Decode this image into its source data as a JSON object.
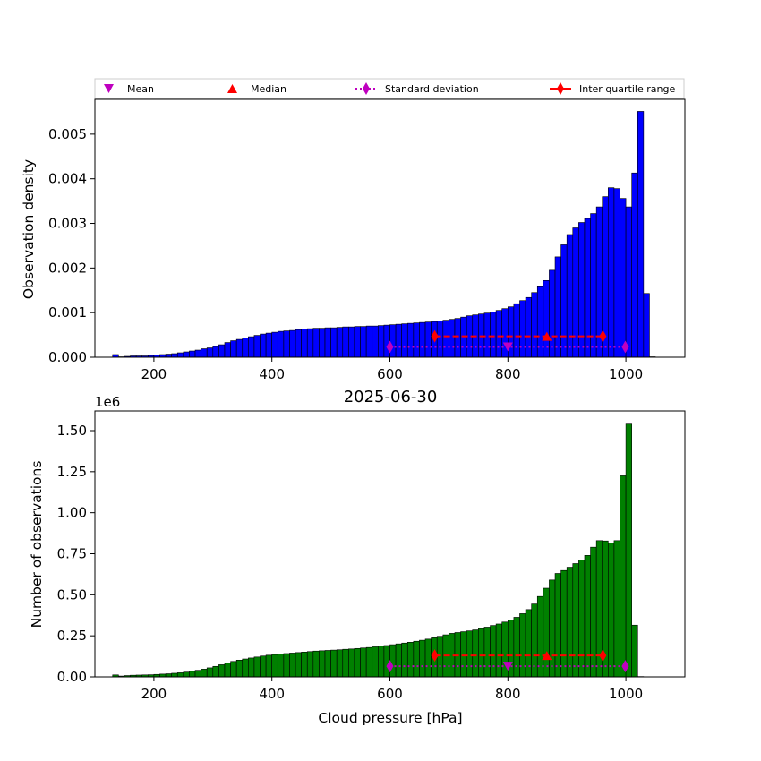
{
  "legend": {
    "mean_label": "Mean",
    "median_label": "Median",
    "std_label": "Standard deviation",
    "iqr_label": "Inter quartile range"
  },
  "colors": {
    "top_bars": "#0000ff",
    "bottom_bars": "#008000",
    "mean": "#bf00bf",
    "std": "#bf00bf",
    "median": "#ff0000",
    "iqr": "#ff0000"
  },
  "chart_data": [
    {
      "type": "bar",
      "xlabel": "",
      "ylabel": "Observation density",
      "xlim": [
        100,
        1100
      ],
      "ylim": [
        0,
        0.00578
      ],
      "xticks": [
        200,
        400,
        600,
        800,
        1000
      ],
      "yticks": [
        0.0,
        0.001,
        0.002,
        0.003,
        0.004,
        0.005
      ],
      "ytick_labels": [
        "0.000",
        "0.001",
        "0.002",
        "0.003",
        "0.004",
        "0.005"
      ],
      "bin_start": 130,
      "bin_width": 10,
      "values": [
        6e-05,
        1e-05,
        2e-05,
        3e-05,
        3e-05,
        3e-05,
        4e-05,
        5e-05,
        6e-05,
        7e-05,
        8e-05,
        0.0001,
        0.00012,
        0.00014,
        0.00016,
        0.00019,
        0.00021,
        0.00024,
        0.00028,
        0.00033,
        0.00037,
        0.0004,
        0.00043,
        0.00046,
        0.00049,
        0.00052,
        0.00054,
        0.00056,
        0.00058,
        0.00059,
        0.0006,
        0.00062,
        0.00063,
        0.00064,
        0.00065,
        0.00065,
        0.00066,
        0.00066,
        0.00067,
        0.00068,
        0.00068,
        0.00069,
        0.00069,
        0.0007,
        0.0007,
        0.00071,
        0.00072,
        0.00073,
        0.00074,
        0.00075,
        0.00076,
        0.00077,
        0.00078,
        0.00079,
        0.0008,
        0.00081,
        0.00083,
        0.00085,
        0.00087,
        0.0009,
        0.00093,
        0.00095,
        0.00097,
        0.00099,
        0.00101,
        0.00105,
        0.00109,
        0.00113,
        0.0012,
        0.00127,
        0.00134,
        0.00145,
        0.00158,
        0.00172,
        0.00195,
        0.00225,
        0.00252,
        0.00275,
        0.0029,
        0.00302,
        0.00311,
        0.00322,
        0.00337,
        0.0036,
        0.0038,
        0.00378,
        0.00356,
        0.00337,
        0.00413,
        0.00551,
        0.00143,
        1e-05
      ],
      "stats": {
        "mean": 800,
        "median": 866,
        "std_range": [
          600,
          999
        ],
        "iqr_range": [
          676,
          961
        ],
        "marker_level": 0.00023,
        "iqr_level": 0.00047
      }
    },
    {
      "type": "bar",
      "title": "2025-06-30",
      "xlabel": "Cloud pressure [hPa]",
      "ylabel": "Number of observations",
      "y_offset_label": "1e6",
      "xlim": [
        100,
        1100
      ],
      "ylim": [
        0,
        1.62
      ],
      "xticks": [
        200,
        400,
        600,
        800,
        1000
      ],
      "yticks": [
        0.0,
        0.25,
        0.5,
        0.75,
        1.0,
        1.25,
        1.5
      ],
      "ytick_labels": [
        "0.00",
        "0.25",
        "0.50",
        "0.75",
        "1.00",
        "1.25",
        "1.50"
      ],
      "bin_start": 130,
      "bin_width": 10,
      "values": [
        0.012,
        0.005,
        0.008,
        0.01,
        0.011,
        0.012,
        0.013,
        0.015,
        0.017,
        0.019,
        0.022,
        0.025,
        0.029,
        0.034,
        0.04,
        0.047,
        0.055,
        0.064,
        0.074,
        0.085,
        0.094,
        0.102,
        0.109,
        0.115,
        0.121,
        0.127,
        0.132,
        0.136,
        0.139,
        0.142,
        0.145,
        0.148,
        0.151,
        0.154,
        0.157,
        0.159,
        0.161,
        0.163,
        0.165,
        0.168,
        0.17,
        0.173,
        0.176,
        0.179,
        0.183,
        0.187,
        0.191,
        0.196,
        0.201,
        0.206,
        0.211,
        0.217,
        0.223,
        0.23,
        0.238,
        0.247,
        0.256,
        0.265,
        0.27,
        0.275,
        0.28,
        0.286,
        0.294,
        0.303,
        0.313,
        0.322,
        0.334,
        0.347,
        0.363,
        0.385,
        0.41,
        0.444,
        0.49,
        0.54,
        0.59,
        0.63,
        0.648,
        0.668,
        0.69,
        0.712,
        0.74,
        0.79,
        0.83,
        0.828,
        0.815,
        0.83,
        1.225,
        1.54,
        0.315,
        0.002
      ],
      "stats": {
        "mean": 800,
        "median": 866,
        "std_range": [
          600,
          999
        ],
        "iqr_range": [
          676,
          961
        ],
        "marker_level": 0.065,
        "iqr_level": 0.13
      }
    }
  ]
}
